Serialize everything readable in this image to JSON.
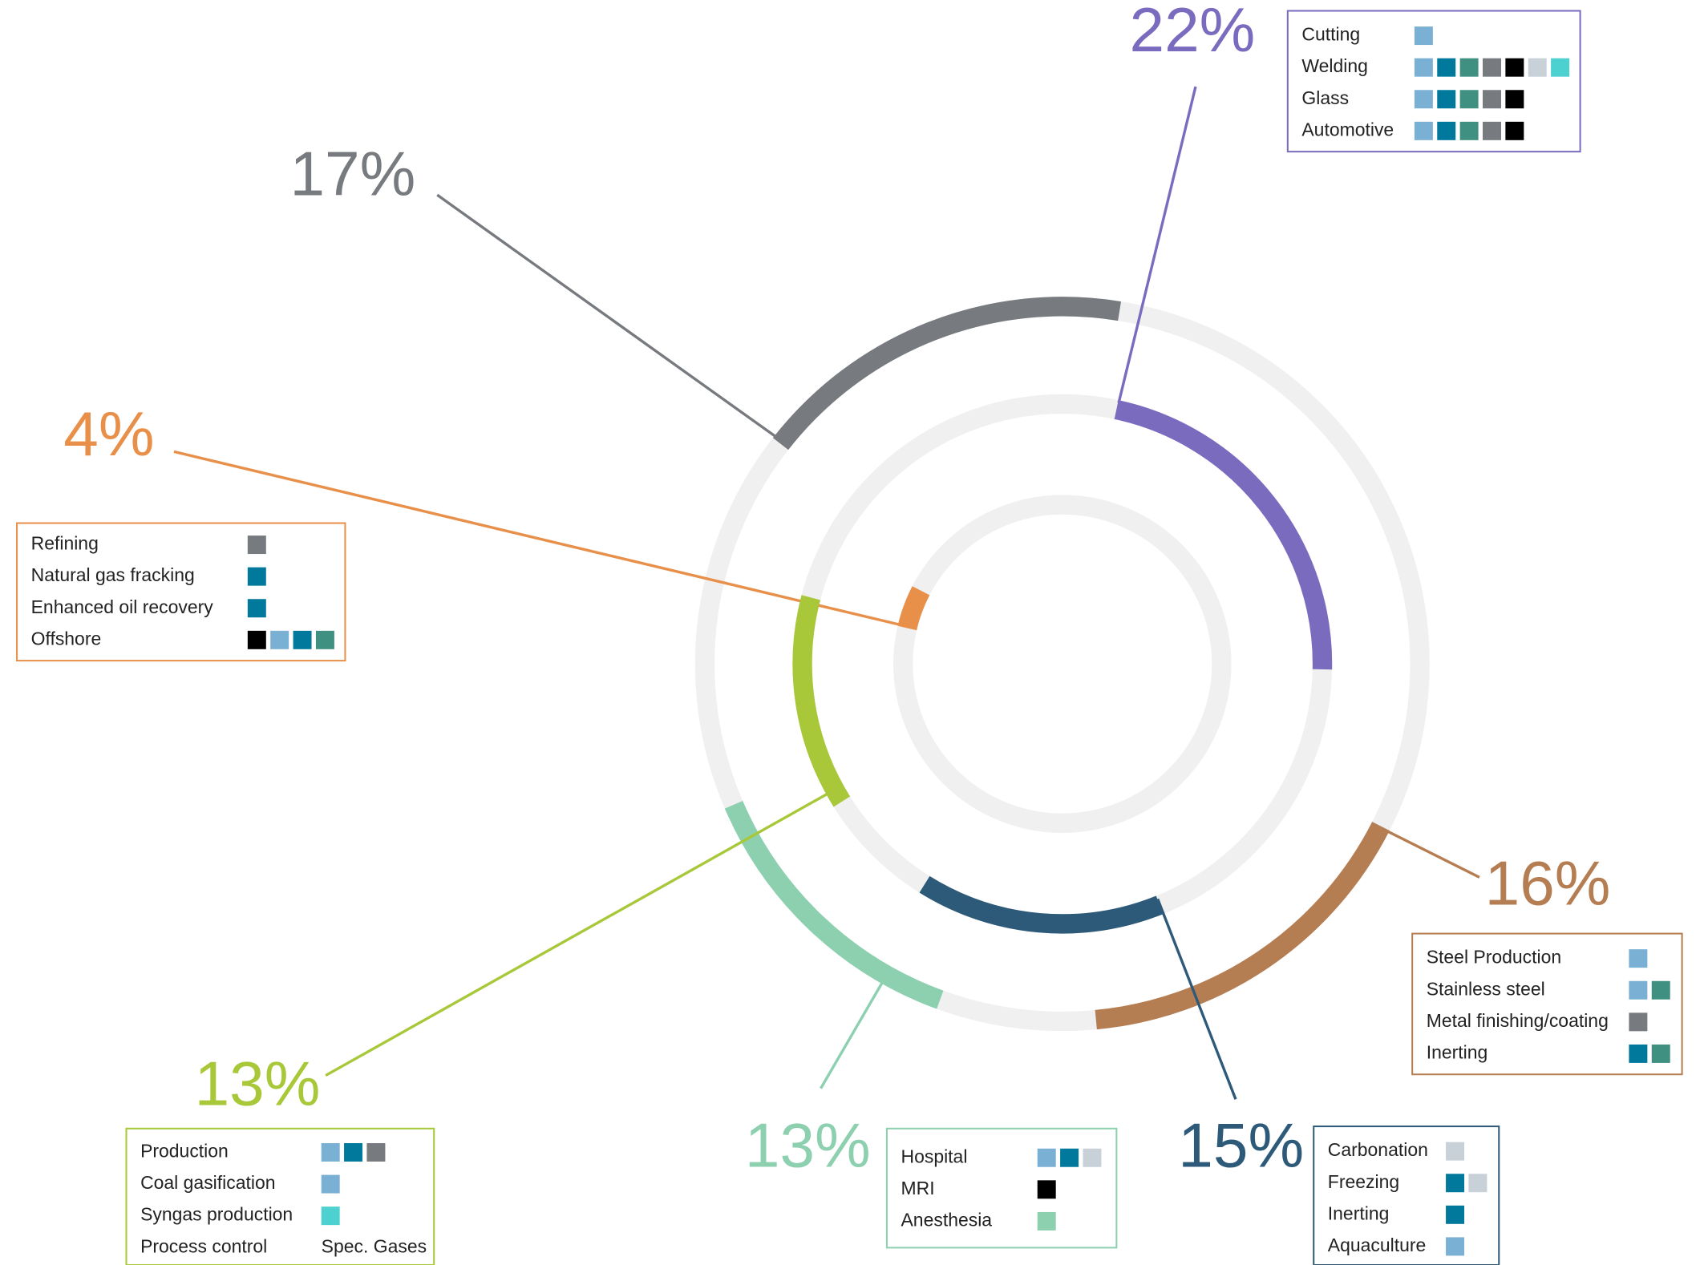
{
  "chart_data": {
    "type": "radial-segments",
    "segments": [
      {
        "value": 22,
        "value_label": "22%",
        "color": "#7b6bbf",
        "legend": [
          {
            "label": "Cutting",
            "swatches": [
              "#7ab0d4"
            ]
          },
          {
            "label": "Welding",
            "swatches": [
              "#7ab0d4",
              "#00799c",
              "#3f9080",
              "#777a7e",
              "#000000",
              "#c8d0d8",
              "#4dd0d0"
            ]
          },
          {
            "label": "Glass",
            "swatches": [
              "#7ab0d4",
              "#00799c",
              "#3f9080",
              "#777a7e",
              "#000000"
            ]
          },
          {
            "label": "Automotive",
            "swatches": [
              "#7ab0d4",
              "#00799c",
              "#3f9080",
              "#777a7e",
              "#000000"
            ]
          }
        ]
      },
      {
        "value": 17,
        "value_label": "17%",
        "color": "#777a7e"
      },
      {
        "value": 4,
        "value_label": "4%",
        "color": "#e8904a",
        "legend": [
          {
            "label": "Refining",
            "swatches": [
              "#777a7e"
            ]
          },
          {
            "label": "Natural gas fracking",
            "swatches": [
              "#00799c"
            ]
          },
          {
            "label": "Enhanced oil recovery",
            "swatches": [
              "#00799c"
            ]
          },
          {
            "label": "Offshore",
            "swatches": [
              "#000000",
              "#7ab0d4",
              "#00799c",
              "#3f9080"
            ]
          }
        ]
      },
      {
        "value": 16,
        "value_label": "16%",
        "color": "#b57d52",
        "legend": [
          {
            "label": "Steel Production",
            "swatches": [
              "#7ab0d4"
            ]
          },
          {
            "label": "Stainless steel",
            "swatches": [
              "#7ab0d4",
              "#3f9080"
            ]
          },
          {
            "label": "Metal finishing/coating",
            "swatches": [
              "#777a7e"
            ]
          },
          {
            "label": "Inerting",
            "swatches": [
              "#00799c",
              "#3f9080"
            ]
          }
        ]
      },
      {
        "value": 15,
        "value_label": "15%",
        "color": "#2e5a7a",
        "legend": [
          {
            "label": "Carbonation",
            "swatches": [
              "#c8d0d8"
            ]
          },
          {
            "label": "Freezing",
            "swatches": [
              "#00799c",
              "#c8d0d8"
            ]
          },
          {
            "label": "Inerting",
            "swatches": [
              "#00799c"
            ]
          },
          {
            "label": "Aquaculture",
            "swatches": [
              "#7ab0d4"
            ]
          }
        ]
      },
      {
        "value": 13,
        "value_label": "13%",
        "color": "#8dd0b0",
        "legend": [
          {
            "label": "Hospital",
            "swatches": [
              "#7ab0d4",
              "#00799c",
              "#c8d0d8"
            ]
          },
          {
            "label": "MRI",
            "swatches": [
              "#000000"
            ]
          },
          {
            "label": "Anesthesia",
            "swatches": [
              "#8dd0b0"
            ]
          }
        ]
      },
      {
        "value": 13,
        "value_label": "13%",
        "color": "#a8c83a",
        "legend": [
          {
            "label": "Production",
            "swatches": [
              "#7ab0d4",
              "#00799c",
              "#777a7e"
            ]
          },
          {
            "label": "Coal gasification",
            "swatches": [
              "#7ab0d4"
            ]
          },
          {
            "label": "Syngas production",
            "swatches": [
              "#4dd0d0"
            ]
          },
          {
            "label": "Process control",
            "swatch_text": "Spec. Gases"
          }
        ]
      }
    ]
  }
}
